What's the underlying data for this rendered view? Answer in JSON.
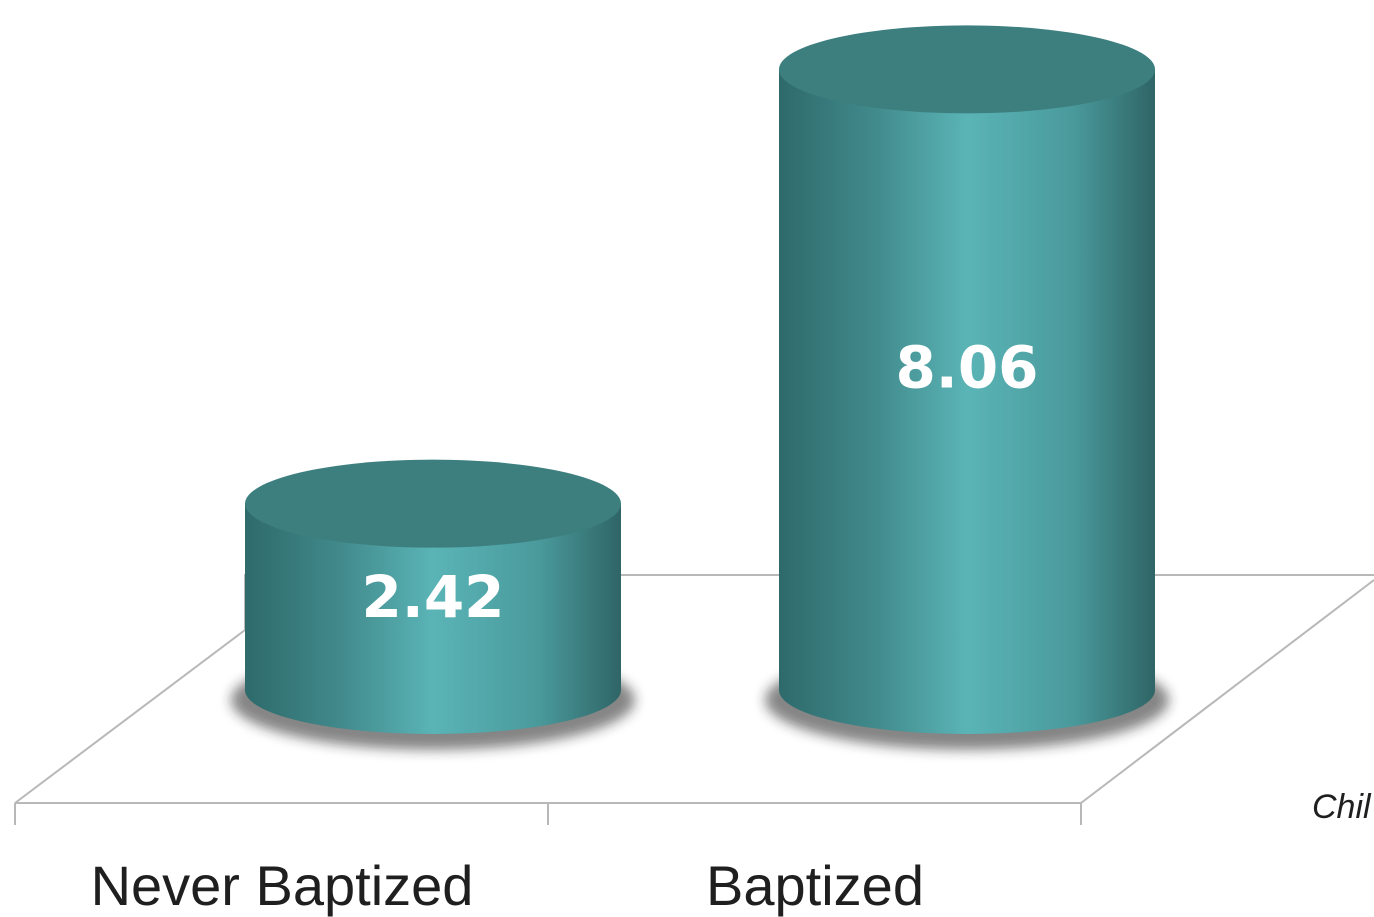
{
  "chart_data": {
    "type": "bar",
    "style": "3d-cylinder",
    "categories": [
      "Never Baptized",
      "Baptized"
    ],
    "values": [
      2.42,
      8.06
    ],
    "value_labels": [
      "2.42",
      "8.06"
    ],
    "title": "",
    "xlabel": "",
    "ylabel": "",
    "grid": false,
    "colors": {
      "bar_dark": "#2f6e6e",
      "bar_mid": "#4a9c9e",
      "bar_light": "#5ab4b6",
      "bar_top": "#3d7f7f",
      "floor_line": "#b8b8b8",
      "value_text": "#ffffff",
      "category_text": "#1f1f1f"
    }
  },
  "note": {
    "text": "Chil"
  }
}
